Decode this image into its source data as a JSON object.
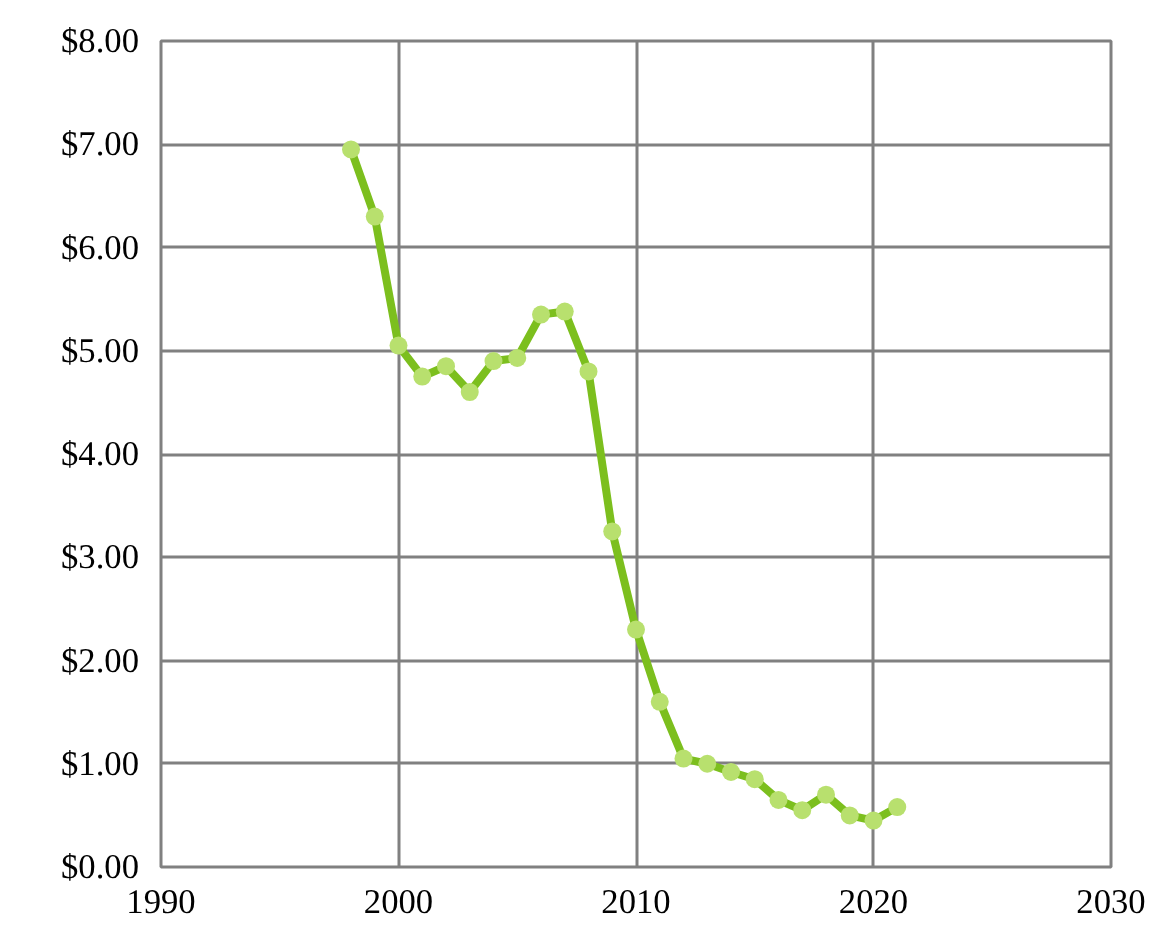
{
  "chart_data": {
    "type": "line",
    "x": [
      1998,
      1999,
      2000,
      2001,
      2002,
      2003,
      2004,
      2005,
      2006,
      2007,
      2008,
      2009,
      2010,
      2011,
      2012,
      2013,
      2014,
      2015,
      2016,
      2017,
      2018,
      2019,
      2020,
      2021
    ],
    "series": [
      {
        "color": "#7cbf1e",
        "values": [
          6.95,
          6.3,
          5.05,
          4.75,
          4.85,
          4.6,
          4.9,
          4.93,
          5.35,
          5.38,
          4.8,
          3.25,
          2.3,
          1.6,
          1.05,
          1.0,
          0.92,
          0.85,
          0.65,
          0.55,
          0.7,
          0.5,
          0.45,
          0.58
        ]
      }
    ],
    "xlim": [
      1990,
      2030
    ],
    "xticks": [
      1990,
      2000,
      2010,
      2020,
      2030
    ],
    "ylim": [
      0,
      8
    ],
    "yticks": [
      {
        "value": 0,
        "label": "$0.00"
      },
      {
        "value": 1,
        "label": "$1.00"
      },
      {
        "value": 2,
        "label": "$2.00"
      },
      {
        "value": 3,
        "label": "$3.00"
      },
      {
        "value": 4,
        "label": "$4.00"
      },
      {
        "value": 5,
        "label": "$5.00"
      },
      {
        "value": 6,
        "label": "$6.00"
      },
      {
        "value": 7,
        "label": "$7.00"
      },
      {
        "value": 8,
        "label": "$8.00"
      }
    ],
    "grid": true,
    "marker": "circle",
    "line_style": "solid"
  }
}
